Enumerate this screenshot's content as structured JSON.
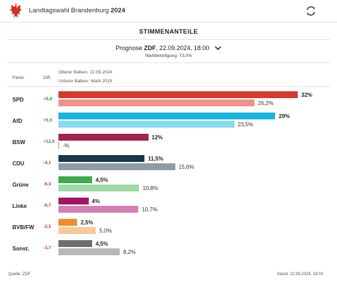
{
  "header": {
    "title_prefix": "Landtagswahl Brandenburg",
    "title_year": "2024"
  },
  "section_title": "STIMMENANTEILE",
  "forecast": {
    "label": "Prognose",
    "source": "ZDF",
    "datetime": ", 22.09.2024, 18:00",
    "turnout": "Wahlbeteiligung: 73,0%"
  },
  "columns": {
    "party": "Partei",
    "diff": "Diff."
  },
  "legend": {
    "upper": "Oberer Balken: 22.09.2024",
    "lower": "Unterer Balken: Wahl 2019"
  },
  "colors": {
    "positive": "#2e8b2e",
    "negative": "#c0392b"
  },
  "chart_data": {
    "type": "bar",
    "categories": [
      "SPD",
      "AfD",
      "BSW",
      "CDU",
      "Grüne",
      "Linke",
      "BVB/FW",
      "Sonst."
    ],
    "series": [
      {
        "name": "Oberer Balken: 22.09.2024",
        "values": [
          32,
          29,
          12,
          11.5,
          4.5,
          4,
          2.5,
          4.5
        ]
      },
      {
        "name": "Unterer Balken: Wahl 2019",
        "values": [
          26.2,
          23.5,
          0,
          15.6,
          10.8,
          10.7,
          5.0,
          8.2
        ]
      }
    ],
    "parties": [
      {
        "name": "SPD",
        "diff": "+5,8",
        "positive": true,
        "current": 32,
        "current_label": "32%",
        "previous": 26.2,
        "previous_label": "26,2%",
        "color": "#d63a2f",
        "color_prev": "#f0928a"
      },
      {
        "name": "AfD",
        "diff": "+5,5",
        "positive": true,
        "current": 29,
        "current_label": "29%",
        "previous": 23.5,
        "previous_label": "23,5%",
        "color": "#19b5e0",
        "color_prev": "#86d9f0"
      },
      {
        "name": "BSW",
        "diff": "+12,0",
        "positive": true,
        "current": 12,
        "current_label": "12%",
        "previous": 0,
        "previous_label": "-%",
        "color": "#a3224f",
        "color_prev": "#c47a93"
      },
      {
        "name": "CDU",
        "diff": "-4,1",
        "positive": false,
        "current": 11.5,
        "current_label": "11,5%",
        "previous": 15.6,
        "previous_label": "15,6%",
        "color": "#1a3947",
        "color_prev": "#8d9da5"
      },
      {
        "name": "Grüne",
        "diff": "-6,3",
        "positive": false,
        "current": 4.5,
        "current_label": "4,5%",
        "previous": 10.8,
        "previous_label": "10,8%",
        "color": "#3cab4d",
        "color_prev": "#9fd9a6"
      },
      {
        "name": "Linke",
        "diff": "-6,7",
        "positive": false,
        "current": 4,
        "current_label": "4%",
        "previous": 10.7,
        "previous_label": "10,7%",
        "color": "#a01565",
        "color_prev": "#d47fb2"
      },
      {
        "name": "BVB/FW",
        "diff": "-2,5",
        "positive": false,
        "current": 2.5,
        "current_label": "2,5%",
        "previous": 5.0,
        "previous_label": "5,0%",
        "color": "#f08c2e",
        "color_prev": "#f8c89a"
      },
      {
        "name": "Sonst.",
        "diff": "-3,7",
        "positive": false,
        "current": 4.5,
        "current_label": "4,5%",
        "previous": 8.2,
        "previous_label": "8,2%",
        "color": "#6e6e6e",
        "color_prev": "#b8b8b8"
      }
    ]
  },
  "footer": {
    "source": "Quelle: ZDF",
    "stand": "Stand: 22.09.2024, 18:00"
  }
}
